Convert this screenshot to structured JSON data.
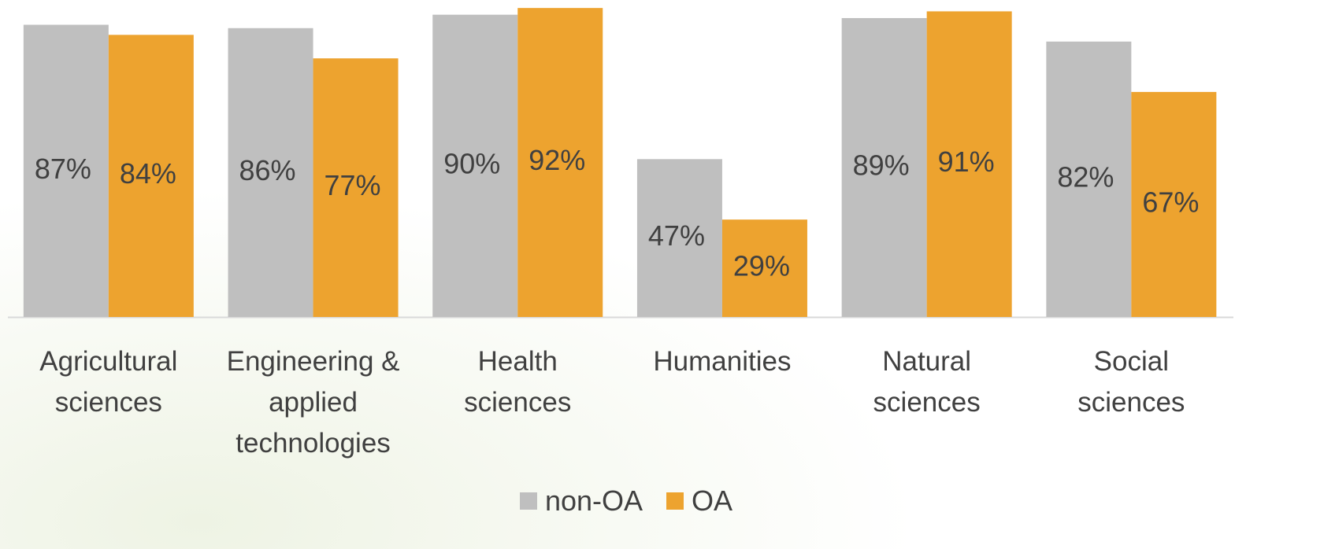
{
  "chart_data": {
    "type": "bar",
    "categories": [
      "Agricultural sciences",
      "Engineering & applied technologies",
      "Health sciences",
      "Humanities",
      "Natural sciences",
      "Social sciences"
    ],
    "series": [
      {
        "name": "non-OA",
        "color": "#bfbfbf",
        "values": [
          87,
          86,
          90,
          47,
          89,
          82
        ],
        "value_labels": [
          "87%",
          "86%",
          "90%",
          "47%",
          "89%",
          "82%"
        ]
      },
      {
        "name": "OA",
        "color": "#eda32f",
        "values": [
          84,
          77,
          92,
          29,
          91,
          67
        ],
        "value_labels": [
          "84%",
          "77%",
          "92%",
          "29%",
          "91%",
          "67%"
        ]
      }
    ],
    "legend": "bottom"
  }
}
